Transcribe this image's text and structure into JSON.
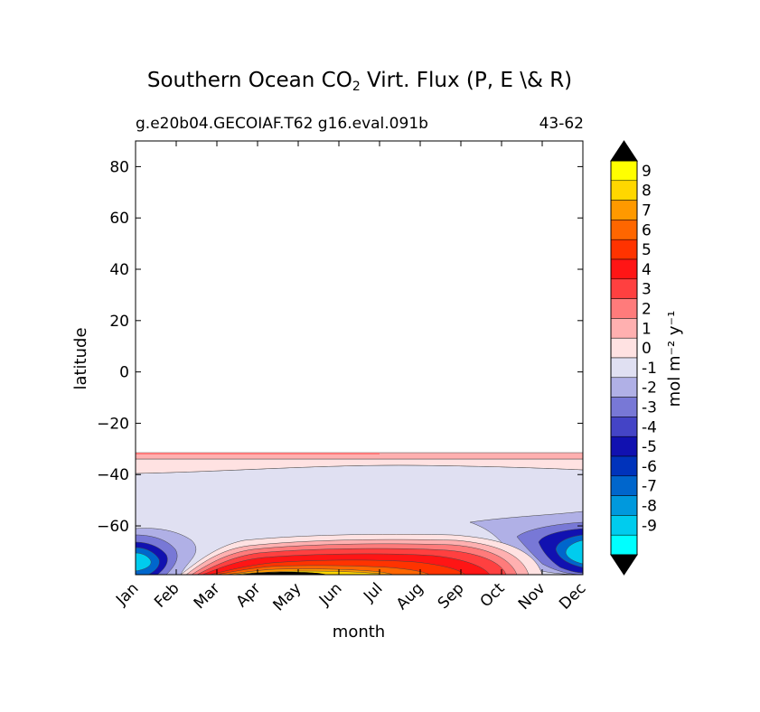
{
  "chart_data": {
    "type": "filled-contour",
    "title": "Southern Ocean CO",
    "title_subscript": "2",
    "title_suffix": " Virt. Flux (P, E \\& R)",
    "subtitle_left": "g.e20b04.GECOIAF.T62 g16.eval.091b",
    "subtitle_right": "43-62",
    "xlabel": "month",
    "ylabel": "latitude",
    "x_ticks": [
      "Jan",
      "Feb",
      "Mar",
      "Apr",
      "May",
      "Jun",
      "Jul",
      "Aug",
      "Sep",
      "Oct",
      "Nov",
      "Dec"
    ],
    "y_ticks": [
      80,
      60,
      40,
      20,
      0,
      -20,
      -40,
      -60
    ],
    "y_tick_labels": [
      "80",
      "60",
      "40",
      "20",
      "0",
      "−20",
      "−40",
      "−60"
    ],
    "ylim": [
      -79,
      90
    ],
    "colorbar": {
      "label": "mol m⁻² y⁻¹",
      "levels": [
        "9",
        "8",
        "7",
        "6",
        "5",
        "4",
        "3",
        "2",
        "1",
        "0",
        "-1",
        "-2",
        "-3",
        "-4",
        "-5",
        "-6",
        "-7",
        "-8",
        "-9"
      ],
      "colors": [
        "#ffff00",
        "#ffd700",
        "#ff9900",
        "#ff6600",
        "#ff3300",
        "#ff1515",
        "#ff4040",
        "#ff7b7b",
        "#ffb0b0",
        "#ffe2e2",
        "#e0e0f2",
        "#b0b0e6",
        "#7878d6",
        "#4444c6",
        "#1111b0",
        "#0033bb",
        "#0066cc",
        "#0099dd",
        "#00ccee",
        "#00ffff"
      ],
      "extend_top_color": "#000000",
      "extend_bottom_color": "#000000"
    },
    "regions": [
      {
        "name": "band-1-to-2",
        "value": 1.5,
        "lat": [
          -34,
          -32
        ],
        "months": "all"
      },
      {
        "name": "band-0-to-1",
        "value": 0.5,
        "lat": [
          -39,
          -34
        ],
        "months": "all"
      },
      {
        "name": "band-neg1-to-0",
        "value": -0.5,
        "lat": [
          -75,
          -39
        ],
        "months": "all"
      },
      {
        "name": "summer-negative-flux",
        "value": -8,
        "lat": [
          -79,
          -62
        ],
        "months": [
          "Nov",
          "Dec",
          "Jan",
          "Feb"
        ]
      },
      {
        "name": "winter-positive-flux",
        "value": 5,
        "lat": [
          -79,
          -65
        ],
        "months": [
          "Mar",
          "Apr",
          "May",
          "Jun",
          "Jul",
          "Aug",
          "Sep",
          "Oct"
        ]
      }
    ]
  }
}
